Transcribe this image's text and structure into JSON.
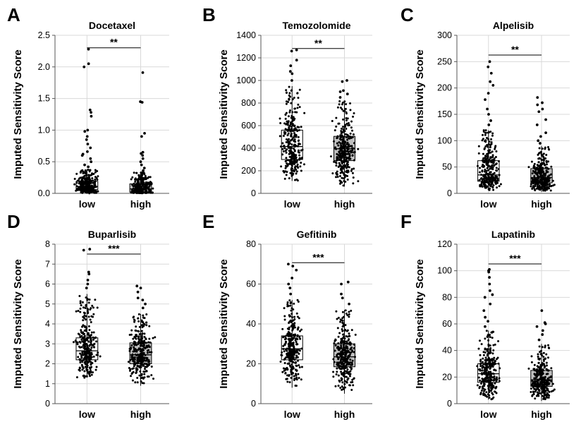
{
  "colors": {
    "low_box": "#ffffff",
    "high_box": "#c0c0c0",
    "point": "#000000",
    "grid": "#d9d9d9",
    "axis": "#555555"
  },
  "chart_data": [
    {
      "panel": "A",
      "type": "box",
      "title": "Docetaxel",
      "ylabel": "Imputed Sensitivity Score",
      "categories": [
        "low",
        "high"
      ],
      "ylim": [
        0,
        2.5
      ],
      "yticks": [
        "0.0",
        "0.5",
        "1.0",
        "1.5",
        "2.0",
        "2.5"
      ],
      "significance": "**",
      "series": [
        {
          "name": "low",
          "q1": 0.06,
          "median": 0.11,
          "q3": 0.19,
          "whisker_low": 0.0,
          "whisker_high": 0.38,
          "outliers": [
            0.42,
            0.45,
            0.5,
            0.55,
            0.6,
            0.62,
            0.66,
            0.72,
            0.78,
            0.85,
            0.9,
            0.98,
            1.0,
            1.22,
            1.28,
            1.32,
            2.0,
            2.05,
            2.28
          ]
        },
        {
          "name": "high",
          "q1": 0.02,
          "median": 0.07,
          "q3": 0.15,
          "whisker_low": 0.0,
          "whisker_high": 0.33,
          "outliers": [
            0.36,
            0.4,
            0.45,
            0.5,
            0.55,
            0.6,
            0.63,
            0.65,
            0.9,
            0.95,
            1.44,
            1.45,
            1.91
          ]
        }
      ]
    },
    {
      "panel": "B",
      "type": "box",
      "title": "Temozolomide",
      "ylabel": "Imputed Sensitivity Score",
      "categories": [
        "low",
        "high"
      ],
      "ylim": [
        0,
        1400
      ],
      "yticks": [
        "0",
        "200",
        "400",
        "600",
        "800",
        "1000",
        "1200",
        "1400"
      ],
      "significance": "**",
      "series": [
        {
          "name": "low",
          "q1": 300,
          "median": 415,
          "q3": 560,
          "whisker_low": 110,
          "whisker_high": 950,
          "outliers": [
            1000,
            1060,
            1080,
            1130,
            1180,
            1260,
            1270
          ]
        },
        {
          "name": "high",
          "q1": 290,
          "median": 395,
          "q3": 505,
          "whisker_low": 60,
          "whisker_high": 820,
          "outliers": [
            850,
            880,
            900,
            910,
            990,
            1000
          ]
        }
      ]
    },
    {
      "panel": "C",
      "type": "box",
      "title": "Alpelisib",
      "ylabel": "Imputed Sensitivity Score",
      "categories": [
        "low",
        "high"
      ],
      "ylim": [
        0,
        300
      ],
      "yticks": [
        "0",
        "50",
        "100",
        "150",
        "200",
        "250",
        "300"
      ],
      "significance": "**",
      "series": [
        {
          "name": "low",
          "q1": 23,
          "median": 35,
          "q3": 62,
          "whisker_low": 5,
          "whisker_high": 120,
          "outliers": [
            130,
            138,
            150,
            160,
            178,
            190,
            205,
            212,
            228,
            240,
            250
          ]
        },
        {
          "name": "high",
          "q1": 20,
          "median": 30,
          "q3": 47,
          "whisker_low": 3,
          "whisker_high": 90,
          "outliers": [
            95,
            100,
            108,
            115,
            130,
            140,
            155,
            160,
            168,
            172,
            182
          ]
        }
      ]
    },
    {
      "panel": "D",
      "type": "box",
      "title": "Buparlisib",
      "ylabel": "Imputed Sensitivity Score",
      "categories": [
        "low",
        "high"
      ],
      "ylim": [
        0,
        8
      ],
      "yticks": [
        "0",
        "1",
        "2",
        "3",
        "4",
        "5",
        "6",
        "7",
        "8"
      ],
      "significance": "***",
      "series": [
        {
          "name": "low",
          "q1": 2.2,
          "median": 2.65,
          "q3": 3.3,
          "whisker_low": 1.3,
          "whisker_high": 5.5,
          "outliers": [
            5.8,
            6.0,
            6.2,
            6.5,
            6.6,
            7.7,
            7.75
          ]
        },
        {
          "name": "high",
          "q1": 2.0,
          "median": 2.45,
          "q3": 3.05,
          "whisker_low": 0.9,
          "whisker_high": 4.5,
          "outliers": [
            4.8,
            5.0,
            5.2,
            5.3,
            5.6,
            5.8,
            5.9
          ]
        }
      ]
    },
    {
      "panel": "E",
      "type": "box",
      "title": "Gefitinib",
      "ylabel": "Imputed Sensitivity Score",
      "categories": [
        "low",
        "high"
      ],
      "ylim": [
        0,
        80
      ],
      "yticks": [
        "0",
        "20",
        "40",
        "60",
        "80"
      ],
      "significance": "***",
      "series": [
        {
          "name": "low",
          "q1": 22,
          "median": 27.5,
          "q3": 34,
          "whisker_low": 8,
          "whisker_high": 52,
          "outliers": [
            55,
            58,
            60,
            63,
            67,
            69,
            70
          ]
        },
        {
          "name": "high",
          "q1": 18.5,
          "median": 23.5,
          "q3": 30,
          "whisker_low": 5,
          "whisker_high": 47,
          "outliers": [
            50,
            53,
            55,
            60,
            61
          ]
        }
      ]
    },
    {
      "panel": "F",
      "type": "box",
      "title": "Lapatinib",
      "ylabel": "Imputed Sensitivity Score",
      "categories": [
        "low",
        "high"
      ],
      "ylim": [
        0,
        120
      ],
      "yticks": [
        "0",
        "20",
        "40",
        "60",
        "80",
        "100",
        "120"
      ],
      "significance": "***",
      "series": [
        {
          "name": "low",
          "q1": 16,
          "median": 22.5,
          "q3": 30,
          "whisker_low": 3,
          "whisker_high": 55,
          "outliers": [
            58,
            62,
            65,
            70,
            75,
            80,
            82,
            85,
            90,
            95,
            99,
            100,
            101
          ]
        },
        {
          "name": "high",
          "q1": 13,
          "median": 18,
          "q3": 25,
          "whisker_low": 2,
          "whisker_high": 45,
          "outliers": [
            48,
            52,
            55,
            58,
            60,
            61,
            70
          ]
        }
      ]
    }
  ]
}
